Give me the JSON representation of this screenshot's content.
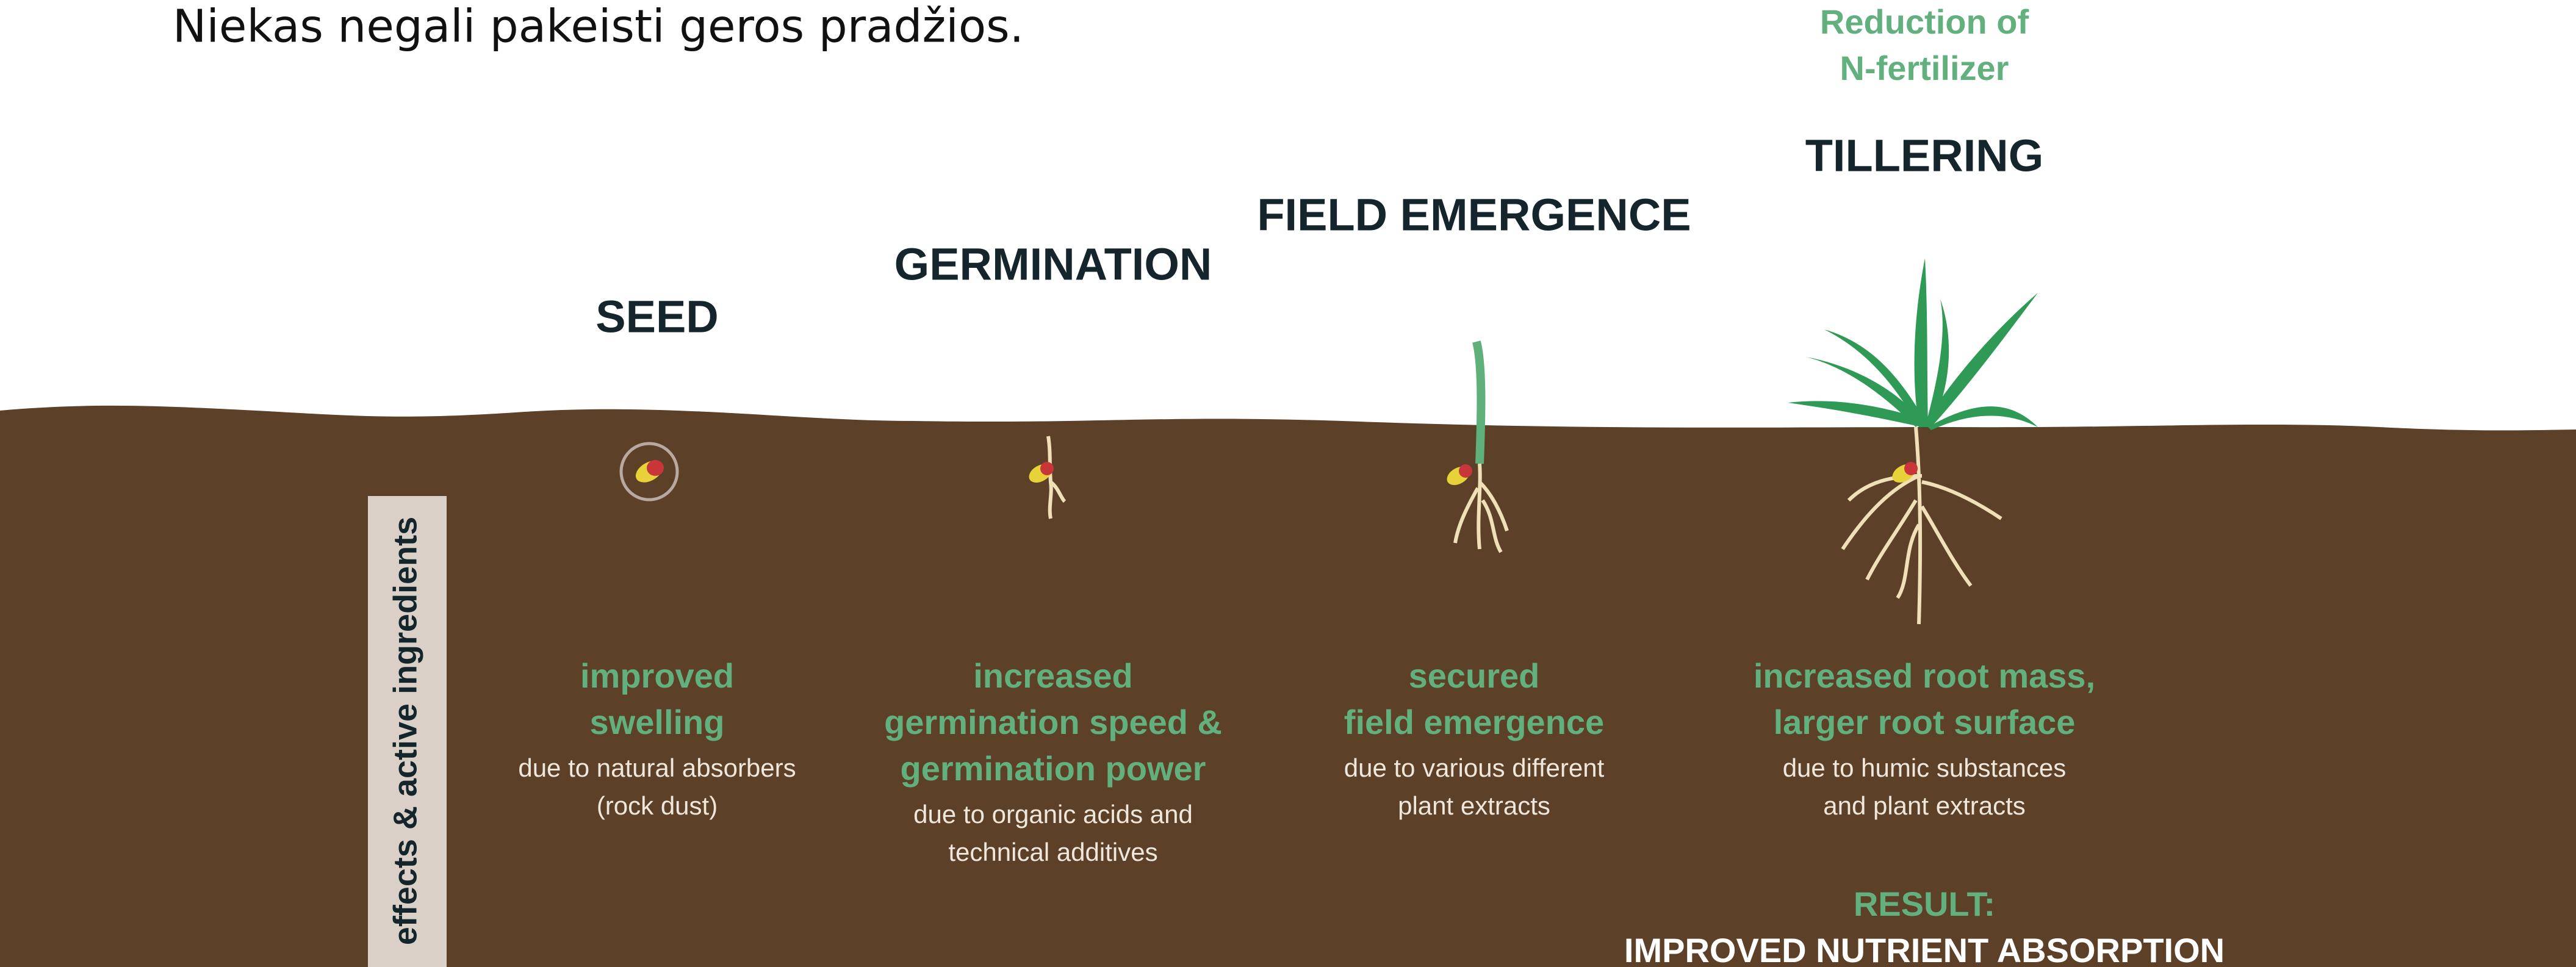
{
  "header": {
    "title": "Niekas negali pakeisti geros pradžios."
  },
  "side_label": "effects & active ingredients",
  "top_note": [
    "Reduction of",
    "N-fertilizer"
  ],
  "stages": [
    {
      "name": "SEED",
      "effect": [
        "improved",
        "swelling"
      ],
      "cause": [
        "due to natural absorbers",
        "(rock dust)"
      ]
    },
    {
      "name": "GERMINATION",
      "effect": [
        "increased",
        "germination speed &",
        "germination power"
      ],
      "cause": [
        "due to organic acids and",
        "technical additives"
      ]
    },
    {
      "name": "FIELD EMERGENCE",
      "effect": [
        "secured",
        "field emergence"
      ],
      "cause": [
        "due to various different",
        "plant extracts"
      ]
    },
    {
      "name": "TILLERING",
      "effect": [
        "increased root mass,",
        "larger root surface"
      ],
      "cause": [
        "due to humic substances",
        "and plant extracts"
      ]
    }
  ],
  "result": {
    "label": "RESULT:",
    "text": "IMPROVED NUTRIENT ABSORPTION"
  }
}
